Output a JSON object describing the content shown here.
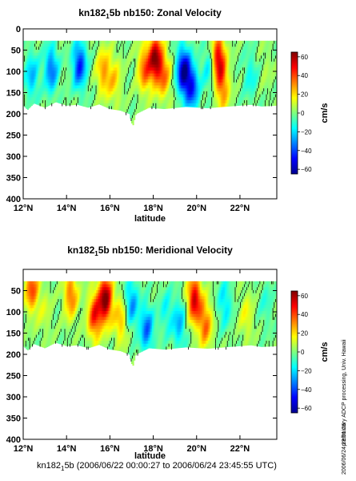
{
  "chart_data": [
    {
      "type": "heatmap",
      "title_main": "kn182",
      "title_sub": "1",
      "title_rest": "5b nb150: Zonal Velocity",
      "xlabel": "latitude",
      "ylabel": "",
      "x_range_degN": [
        12,
        23.7
      ],
      "y_range_m": [
        400,
        0
      ],
      "y_inverted": true,
      "x_ticks": [
        12,
        14,
        16,
        18,
        20,
        22
      ],
      "x_tick_labels": [
        "12°N",
        "14°N",
        "16°N",
        "18°N",
        "20°N",
        "22°N"
      ],
      "y_ticks": [
        0,
        50,
        100,
        150,
        200,
        250,
        300,
        350,
        400
      ],
      "y_tick_labels": [
        "0",
        "50",
        "100",
        "150",
        "200",
        "250",
        "300",
        "350",
        "400"
      ],
      "data_depth_top_m": 28,
      "colorbar": {
        "label": "cm/s",
        "range": [
          -65,
          65
        ],
        "ticks": [
          60,
          40,
          20,
          0,
          -20,
          -40,
          -60
        ],
        "tick_labels": [
          "60",
          "40",
          "20",
          "0",
          "−20",
          "−40",
          "−60"
        ]
      },
      "bottom_depth_profile": {
        "lat": [
          12.0,
          12.2,
          12.5,
          13.0,
          13.5,
          14.0,
          14.5,
          15.0,
          15.5,
          16.0,
          16.5,
          16.9,
          17.05,
          17.2,
          17.8,
          18.5,
          19.5,
          20.5,
          21.5,
          22.5,
          23.0,
          23.7
        ],
        "depth_m": [
          180,
          190,
          175,
          185,
          172,
          180,
          178,
          185,
          177,
          188,
          192,
          200,
          230,
          200,
          185,
          188,
          183,
          186,
          182,
          178,
          182,
          180
        ]
      },
      "features": [
        {
          "lat": 13.3,
          "depth": 95,
          "v": -35
        },
        {
          "lat": 14.6,
          "depth": 85,
          "v": -45
        },
        {
          "lat": 12.4,
          "depth": 110,
          "v": -25
        },
        {
          "lat": 15.7,
          "depth": 100,
          "v": 28
        },
        {
          "lat": 16.2,
          "depth": 120,
          "v": 20
        },
        {
          "lat": 17.6,
          "depth": 95,
          "v": 35
        },
        {
          "lat": 18.1,
          "depth": 70,
          "v": 60
        },
        {
          "lat": 18.5,
          "depth": 110,
          "v": 30
        },
        {
          "lat": 19.4,
          "depth": 100,
          "v": -60
        },
        {
          "lat": 19.8,
          "depth": 140,
          "v": -40
        },
        {
          "lat": 20.6,
          "depth": 90,
          "v": -20
        },
        {
          "lat": 21.0,
          "depth": 70,
          "v": 55
        },
        {
          "lat": 21.2,
          "depth": 140,
          "v": 30
        },
        {
          "lat": 22.5,
          "depth": 110,
          "v": -15
        },
        {
          "lat": 23.2,
          "depth": 90,
          "v": 5
        }
      ]
    },
    {
      "type": "heatmap",
      "title_main": "kn182",
      "title_sub": "1",
      "title_rest": "5b nb150: Meridional Velocity",
      "xlabel": "latitude",
      "ylabel": "",
      "x_range_degN": [
        12,
        23.7
      ],
      "y_range_m": [
        400,
        0
      ],
      "y_inverted": true,
      "x_ticks": [
        12,
        14,
        16,
        18,
        20,
        22
      ],
      "x_tick_labels": [
        "12°N",
        "14°N",
        "16°N",
        "18°N",
        "20°N",
        "22°N"
      ],
      "y_ticks": [
        50,
        100,
        150,
        200,
        250,
        300,
        350,
        400
      ],
      "y_tick_labels": [
        "50",
        "100",
        "150",
        "200",
        "250",
        "300",
        "350",
        "400"
      ],
      "data_depth_top_m": 28,
      "colorbar": {
        "label": "cm/s",
        "range": [
          -65,
          65
        ],
        "ticks": [
          60,
          40,
          20,
          0,
          -20,
          -40,
          -60
        ],
        "tick_labels": [
          "60",
          "40",
          "20",
          "0",
          "−20",
          "−40",
          "−60"
        ]
      },
      "bottom_depth_profile": {
        "lat": [
          12.0,
          12.2,
          12.5,
          13.0,
          13.5,
          14.0,
          14.5,
          15.0,
          15.5,
          16.0,
          16.5,
          16.9,
          17.05,
          17.2,
          17.8,
          18.5,
          19.5,
          20.5,
          21.5,
          22.5,
          23.0,
          23.7
        ],
        "depth_m": [
          180,
          190,
          175,
          185,
          172,
          180,
          178,
          185,
          177,
          188,
          192,
          200,
          230,
          200,
          185,
          188,
          183,
          186,
          182,
          178,
          182,
          180
        ]
      },
      "features": [
        {
          "lat": 12.4,
          "depth": 45,
          "v": 40
        },
        {
          "lat": 13.0,
          "depth": 100,
          "v": 10
        },
        {
          "lat": 14.2,
          "depth": 60,
          "v": 35
        },
        {
          "lat": 15.3,
          "depth": 110,
          "v": 45
        },
        {
          "lat": 15.8,
          "depth": 70,
          "v": 65
        },
        {
          "lat": 16.5,
          "depth": 120,
          "v": 25
        },
        {
          "lat": 17.0,
          "depth": 80,
          "v": -30
        },
        {
          "lat": 17.7,
          "depth": 140,
          "v": -35
        },
        {
          "lat": 18.6,
          "depth": 100,
          "v": -15
        },
        {
          "lat": 19.2,
          "depth": 130,
          "v": -25
        },
        {
          "lat": 19.9,
          "depth": 70,
          "v": 55
        },
        {
          "lat": 20.4,
          "depth": 130,
          "v": 35
        },
        {
          "lat": 21.3,
          "depth": 80,
          "v": -20
        },
        {
          "lat": 22.3,
          "depth": 110,
          "v": 15
        },
        {
          "lat": 23.2,
          "depth": 80,
          "v": -10
        }
      ]
    }
  ],
  "side_note": "preliminary ADCP processing,  Univ. Hawaii",
  "timestamp": "2006/06/24 23:51:26",
  "footer": {
    "main": "kn182",
    "sub": "1",
    "rest": "5b (2006/06/22 00:00:27 to 2006/06/24 23:45:55 UTC)"
  }
}
